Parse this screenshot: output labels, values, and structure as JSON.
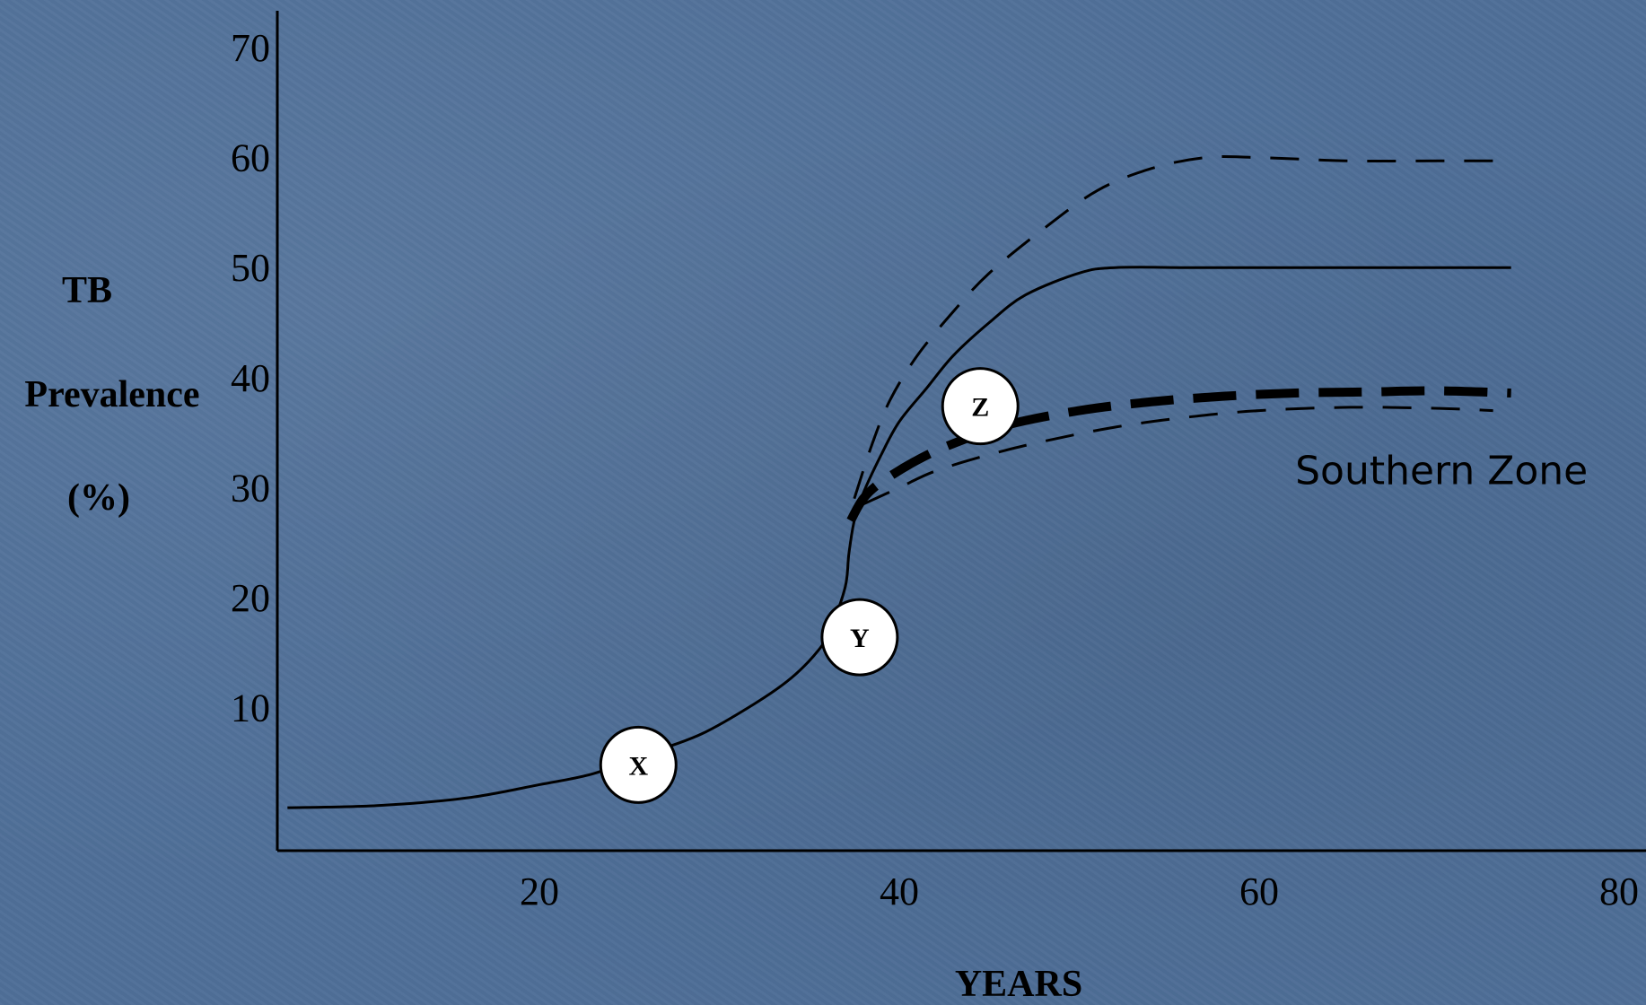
{
  "chart_data": {
    "type": "line",
    "xlabel": "YEARS",
    "ylabel_lines": [
      "TB",
      "Prevalence",
      "(%)"
    ],
    "xlim": [
      5,
      80
    ],
    "ylim": [
      -3,
      70
    ],
    "x_ticks": [
      20,
      40,
      60,
      80
    ],
    "y_ticks": [
      10,
      20,
      30,
      40,
      50,
      60,
      70
    ],
    "grid": false,
    "series": [
      {
        "style": "solid",
        "points": [
          [
            6,
            0.9
          ],
          [
            11,
            1.1
          ],
          [
            16,
            1.8
          ],
          [
            20,
            3
          ],
          [
            23,
            4
          ],
          [
            26,
            5.8
          ],
          [
            29,
            7.6
          ],
          [
            32,
            10.4
          ],
          [
            34,
            12.7
          ],
          [
            35.5,
            15.2
          ],
          [
            36.2,
            17.2
          ],
          [
            37,
            21
          ],
          [
            37.2,
            24
          ],
          [
            37.5,
            27
          ],
          [
            38,
            29.5
          ],
          [
            39,
            33
          ],
          [
            40,
            36
          ],
          [
            41.5,
            39
          ],
          [
            43,
            42
          ],
          [
            45,
            45
          ],
          [
            47,
            47.5
          ],
          [
            50,
            49.5
          ],
          [
            52,
            50
          ],
          [
            56,
            50
          ],
          [
            60,
            50
          ],
          [
            65,
            50
          ],
          [
            70,
            50
          ],
          [
            74,
            50
          ]
        ]
      },
      {
        "style": "dashed",
        "points": [
          [
            37.5,
            29
          ],
          [
            38.5,
            34
          ],
          [
            39.5,
            38
          ],
          [
            41,
            42
          ],
          [
            43,
            46
          ],
          [
            45,
            49.5
          ],
          [
            48,
            53.5
          ],
          [
            51,
            57
          ],
          [
            54,
            59
          ],
          [
            57,
            60
          ],
          [
            60,
            60
          ],
          [
            65,
            59.7
          ],
          [
            70,
            59.7
          ],
          [
            73,
            59.7
          ]
        ]
      },
      {
        "style": "thick-dashed",
        "points": [
          [
            37.3,
            27
          ],
          [
            38,
            29
          ],
          [
            39,
            30.5
          ],
          [
            41,
            32.5
          ],
          [
            43,
            34
          ],
          [
            46,
            35.7
          ],
          [
            50,
            37
          ],
          [
            54,
            37.8
          ],
          [
            58,
            38.3
          ],
          [
            62,
            38.6
          ],
          [
            66,
            38.7
          ],
          [
            70,
            38.8
          ],
          [
            74,
            38.6
          ]
        ]
      },
      {
        "style": "dashed",
        "points": [
          [
            38,
            28.5
          ],
          [
            40,
            30
          ],
          [
            42,
            31.5
          ],
          [
            45,
            33
          ],
          [
            48,
            34.2
          ],
          [
            52,
            35.5
          ],
          [
            56,
            36.4
          ],
          [
            60,
            37
          ],
          [
            65,
            37.3
          ],
          [
            70,
            37.2
          ],
          [
            73,
            37
          ]
        ]
      }
    ],
    "markers": [
      {
        "label": "X",
        "x": 25.5,
        "y": 4.8
      },
      {
        "label": "Y",
        "x": 37.8,
        "y": 16.4
      },
      {
        "label": "Z",
        "x": 44.5,
        "y": 37.4
      }
    ],
    "annotations": [
      {
        "text": "Southern Zone",
        "x": 62,
        "y": 30.3
      }
    ]
  }
}
